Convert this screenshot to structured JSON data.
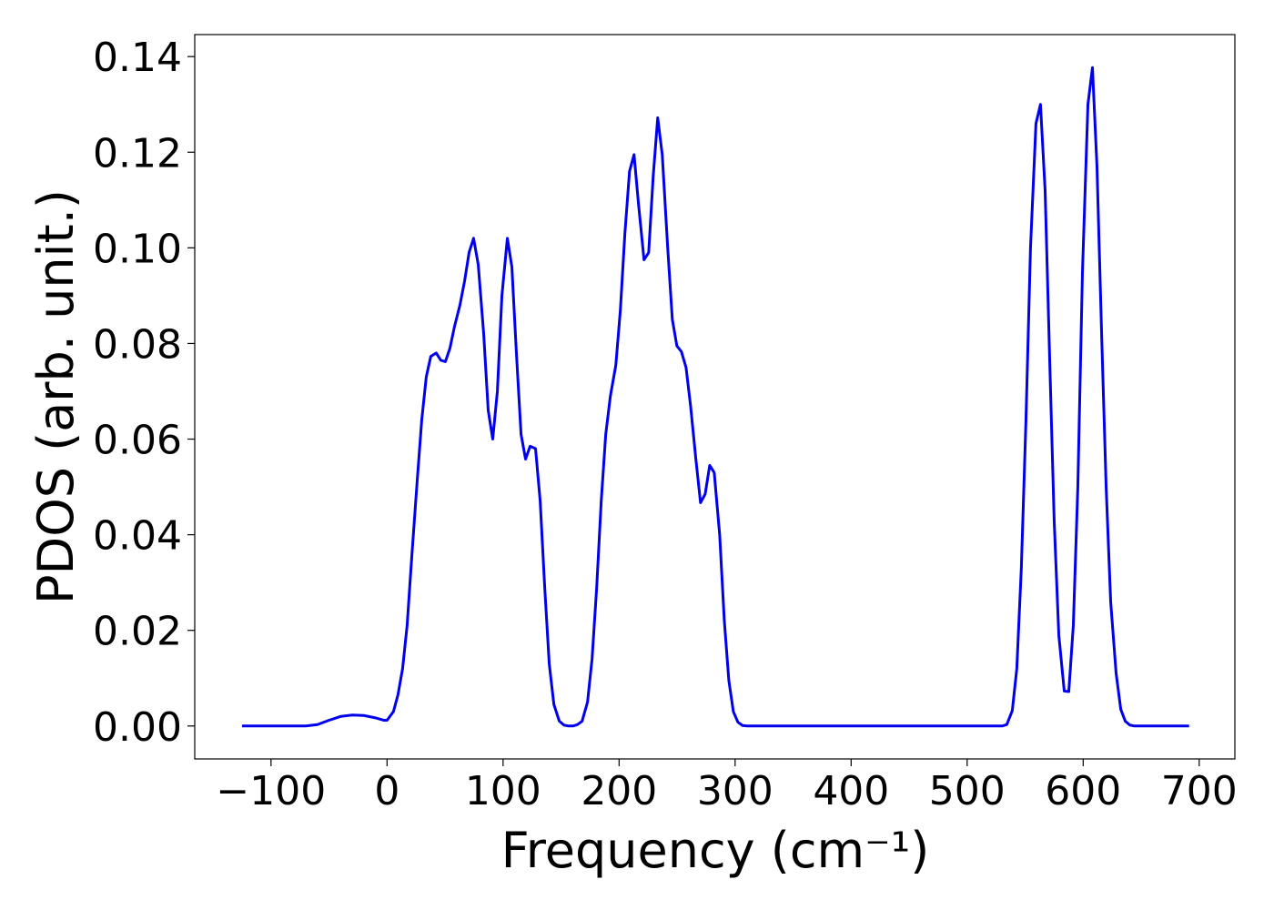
{
  "chart_data": {
    "type": "line",
    "xlabel": "Frequency (cm⁻¹)",
    "ylabel": "PDOS (arb. unit.)",
    "xlim": [
      -165.75,
      730.75
    ],
    "ylim": [
      -0.00689,
      0.1446
    ],
    "xticks": [
      {
        "value": -100,
        "label": "−100"
      },
      0,
      100,
      200,
      300,
      400,
      500,
      600,
      700
    ],
    "yticks": [
      {
        "value": 0,
        "label": "0.00"
      },
      {
        "value": 0.02,
        "label": "0.02"
      },
      {
        "value": 0.04,
        "label": "0.04"
      },
      {
        "value": 0.06,
        "label": "0.06"
      },
      {
        "value": 0.08,
        "label": "0.08"
      },
      {
        "value": 0.1,
        "label": "0.10"
      },
      {
        "value": 0.12,
        "label": "0.12"
      },
      {
        "value": 0.14,
        "label": "0.14"
      }
    ],
    "grid": false,
    "series": [
      {
        "color": "#0000ee",
        "x": [
          -125,
          -70,
          -60,
          -50,
          -40,
          -30,
          -20,
          -10,
          -3,
          0,
          5.5,
          9.4,
          13.4,
          17.3,
          21.2,
          25.9,
          29.9,
          33.8,
          37.7,
          42.4,
          46.3,
          50.3,
          54.2,
          58.1,
          62.8,
          66.8,
          70.7,
          74.6,
          78.6,
          83.3,
          87.2,
          91.1,
          95.1,
          99.0,
          103.7,
          107.6,
          111.5,
          115.5,
          119.4,
          123.3,
          128.0,
          132.0,
          135.9,
          139.8,
          143.8,
          148.5,
          152.4,
          156.3,
          160.3,
          164.2,
          168.1,
          172.8,
          176.7,
          180.7,
          184.6,
          188.5,
          192.5,
          197.2,
          201.1,
          205.0,
          209.0,
          212.9,
          216.8,
          221.5,
          225.5,
          229.4,
          233.3,
          237.2,
          241.9,
          245.9,
          249.8,
          253.7,
          257.7,
          261.6,
          266.3,
          270.2,
          274.2,
          278.1,
          282.0,
          286.7,
          290.7,
          294.6,
          298.5,
          302.4,
          306.4,
          310.3,
          530.2,
          534.2,
          538.9,
          542.8,
          546.7,
          550.7,
          554.6,
          559.3,
          563.2,
          567.2,
          571.1,
          575.0,
          579.0,
          583.7,
          587.6,
          591.5,
          595.4,
          599.4,
          604.1,
          608.0,
          611.9,
          615.9,
          619.8,
          623.7,
          628.4,
          632.4,
          636.3,
          640.2,
          644.2,
          691.3
        ],
        "values": [
          0,
          0,
          0.0003,
          0.0012,
          0.002,
          0.0023,
          0.0022,
          0.0017,
          0.0012,
          0.0012,
          0.003,
          0.0065,
          0.012,
          0.021,
          0.035,
          0.051,
          0.064,
          0.073,
          0.0773,
          0.078,
          0.0765,
          0.0762,
          0.079,
          0.0835,
          0.088,
          0.093,
          0.099,
          0.102,
          0.0965,
          0.082,
          0.066,
          0.06,
          0.07,
          0.09,
          0.102,
          0.096,
          0.078,
          0.061,
          0.0558,
          0.0585,
          0.058,
          0.047,
          0.029,
          0.013,
          0.0045,
          0.001,
          0.0002,
          0,
          0,
          0.0003,
          0.001,
          0.005,
          0.014,
          0.029,
          0.047,
          0.061,
          0.069,
          0.0755,
          0.087,
          0.103,
          0.116,
          0.1195,
          0.109,
          0.0975,
          0.099,
          0.115,
          0.1272,
          0.1195,
          0.1,
          0.085,
          0.0795,
          0.0783,
          0.075,
          0.067,
          0.0555,
          0.0467,
          0.0485,
          0.0545,
          0.053,
          0.04,
          0.022,
          0.0095,
          0.003,
          0.0008,
          0.0001,
          0,
          0,
          0.0003,
          0.0032,
          0.012,
          0.033,
          0.064,
          0.1,
          0.126,
          0.13,
          0.112,
          0.077,
          0.043,
          0.019,
          0.0073,
          0.0072,
          0.021,
          0.05,
          0.095,
          0.13,
          0.1377,
          0.117,
          0.082,
          0.05,
          0.026,
          0.011,
          0.0035,
          0.001,
          0.0002,
          0,
          0
        ]
      }
    ]
  }
}
